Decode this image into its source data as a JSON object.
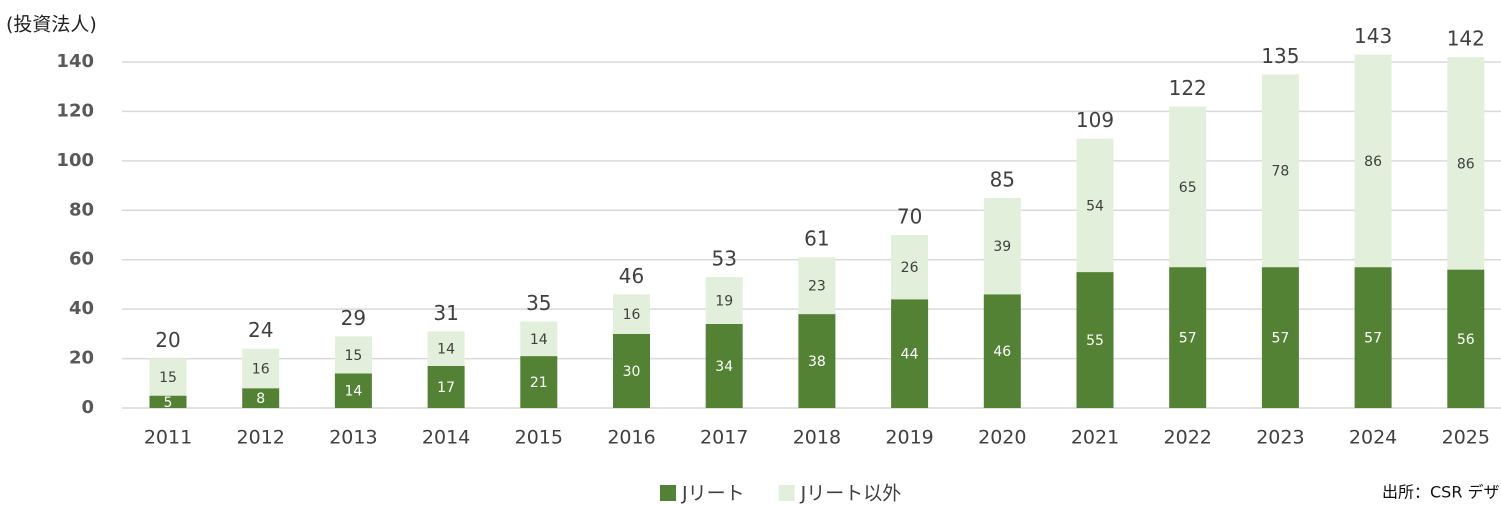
{
  "chart_data": {
    "type": "stacked_bar",
    "y_axis_label": "(投資法人)",
    "categories": [
      "2011",
      "2012",
      "2013",
      "2014",
      "2015",
      "2016",
      "2017",
      "2018",
      "2019",
      "2020",
      "2021",
      "2022",
      "2023",
      "2024",
      "2025"
    ],
    "series": [
      {
        "name": "Jリート",
        "color": "#548235",
        "values": [
          5,
          8,
          14,
          17,
          21,
          30,
          34,
          38,
          44,
          46,
          55,
          57,
          57,
          57,
          56
        ]
      },
      {
        "name": "Jリート以外",
        "color": "#e2efda",
        "values": [
          15,
          16,
          15,
          14,
          14,
          16,
          19,
          23,
          26,
          39,
          54,
          65,
          78,
          86,
          86
        ]
      }
    ],
    "totals": [
      20,
      24,
      29,
      31,
      35,
      46,
      53,
      61,
      70,
      85,
      109,
      122,
      135,
      143,
      142
    ],
    "ylim": [
      0,
      140
    ],
    "yticks": [
      0,
      20,
      40,
      60,
      80,
      100,
      120,
      140
    ],
    "grid": true,
    "legend": "bottom",
    "source": "出所：CSR デザイ"
  }
}
